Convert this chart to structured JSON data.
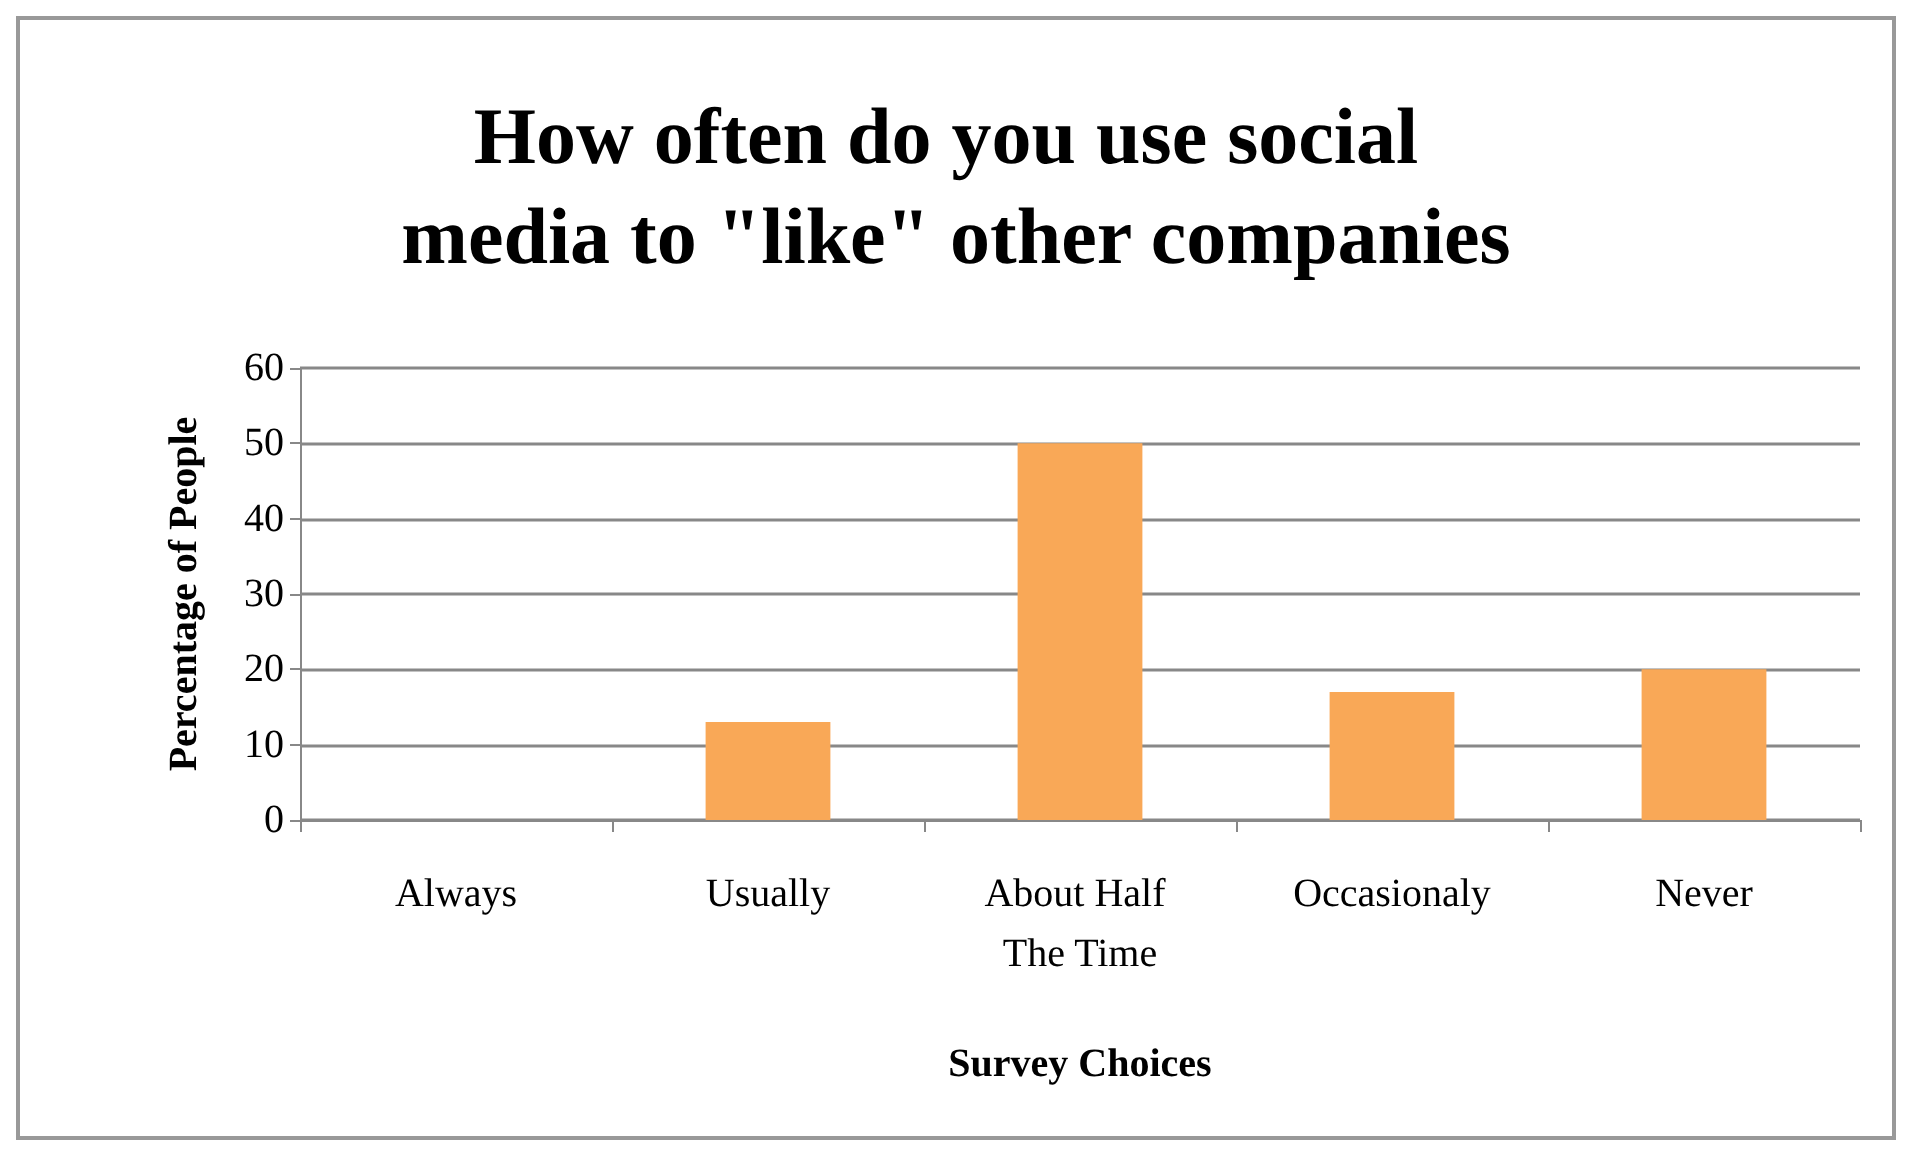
{
  "chart_data": {
    "type": "bar",
    "title": "How often do you use social media to \"like\" other companies",
    "xlabel": "Survey Choices",
    "ylabel": "Percentage of People",
    "categories": [
      "Always",
      "Usually",
      "About Half The Time",
      "Occasionaly",
      "Never"
    ],
    "values": [
      0,
      13,
      50,
      17,
      20
    ],
    "color": "#f9a857",
    "ylim": [
      0,
      60
    ],
    "yticks": [
      0,
      10,
      20,
      30,
      40,
      50,
      60
    ],
    "grid": "y"
  }
}
